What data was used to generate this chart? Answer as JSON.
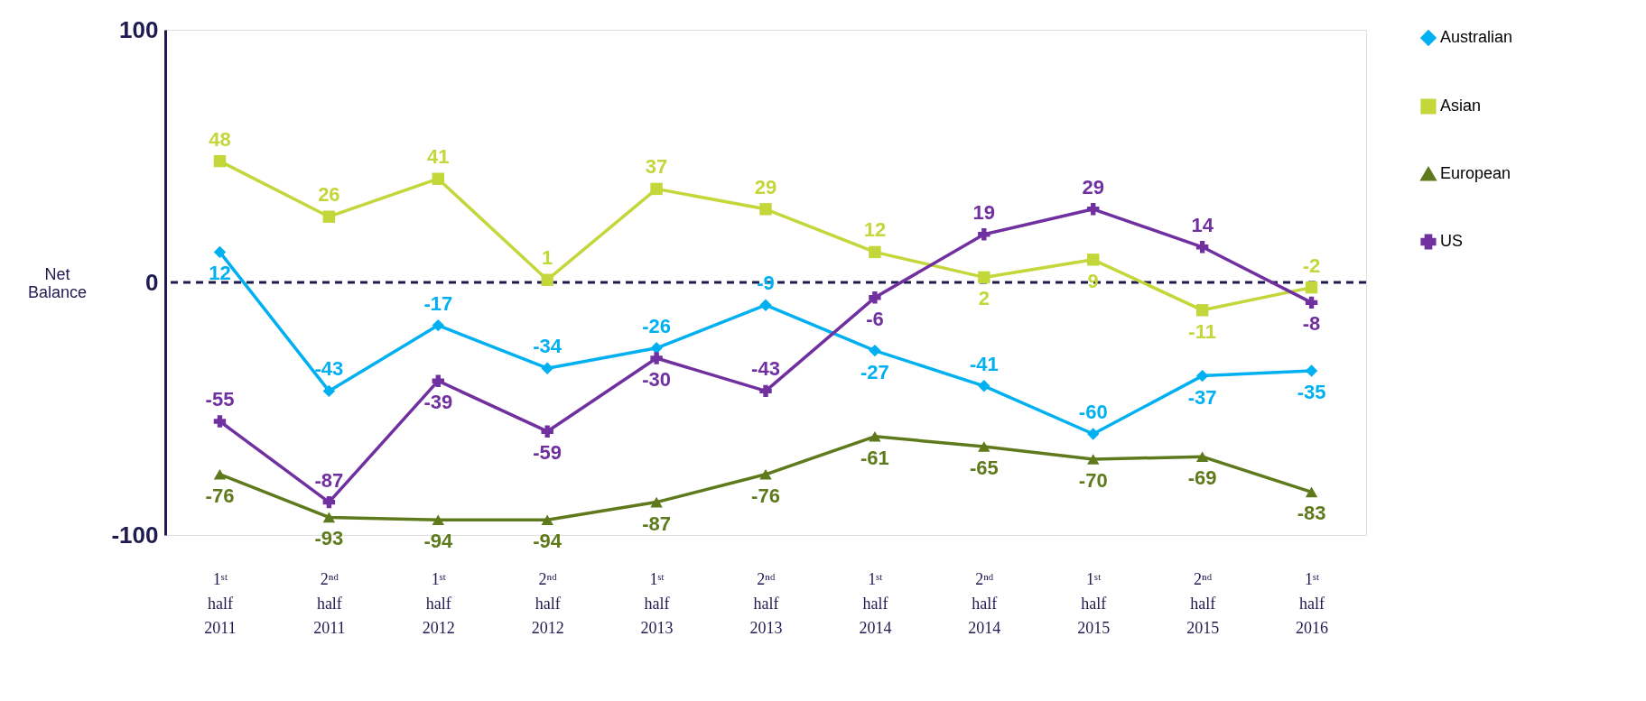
{
  "chart_data": {
    "type": "line",
    "ylabel": "Net Balance",
    "categories": [
      "1ˢᵗ half 2011",
      "2ⁿᵈ half 2011",
      "1ˢᵗ half 2012",
      "2ⁿᵈ half 2012",
      "1ˢᵗ half 2013",
      "2ⁿᵈ half 2013",
      "1ˢᵗ half 2014",
      "2ⁿᵈ half 2014",
      "1ˢᵗ half 2015",
      "2ⁿᵈ half 2015",
      "1ˢᵗ half 2016"
    ],
    "series": [
      {
        "name": "Australian",
        "color": "#00b0f0",
        "marker": "diamond",
        "values": [
          12,
          -43,
          -17,
          -34,
          -26,
          -9,
          -27,
          -41,
          -60,
          -37,
          -35
        ]
      },
      {
        "name": "Asian",
        "color": "#c3d63a",
        "marker": "square",
        "values": [
          48,
          26,
          41,
          1,
          37,
          29,
          12,
          2,
          9,
          -11,
          -2
        ]
      },
      {
        "name": "European",
        "color": "#5f7a1c",
        "marker": "triangle",
        "values": [
          -76,
          -93,
          -94,
          -94,
          -87,
          -76,
          -61,
          -65,
          -70,
          -69,
          -83
        ]
      },
      {
        "name": "US",
        "color": "#7030a0",
        "marker": "cross",
        "values": [
          -55,
          -87,
          -39,
          -59,
          -30,
          -43,
          -6,
          19,
          29,
          14,
          -8
        ]
      }
    ],
    "ylim": [
      -100,
      100
    ],
    "yticks": [
      -100,
      0,
      100
    ],
    "ref_lines": [
      {
        "axis": "y",
        "value": 0,
        "color": "#1f1a4f",
        "line_style": "dashed"
      }
    ],
    "data_labels": true,
    "grid": false,
    "legend": "right",
    "line_style": "solid"
  }
}
